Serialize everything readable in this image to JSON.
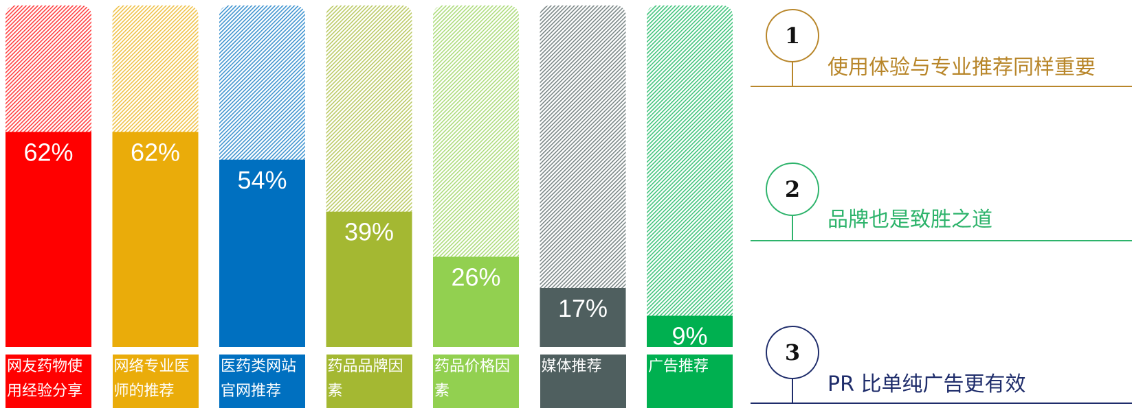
{
  "chart_data": {
    "type": "bar",
    "categories": [
      "网友药物使用经验分享",
      "网络专业医师的推荐",
      "医药类网站官网推荐",
      "药品品牌因素",
      "药品价格因素",
      "媒体推荐",
      "广告推荐"
    ],
    "values": [
      62,
      62,
      54,
      39,
      26,
      17,
      9
    ],
    "value_labels": [
      "62%",
      "62%",
      "54%",
      "39%",
      "26%",
      "17%",
      "9%"
    ],
    "colors": [
      "#ff0000",
      "#eaac0a",
      "#0070c0",
      "#a4b832",
      "#92d050",
      "#4f5f5f",
      "#00b050"
    ],
    "ylim": [
      0,
      100
    ]
  },
  "notes": [
    {
      "number": "1",
      "text": "使用体验与专业推荐同样重要",
      "color": "#b8862a"
    },
    {
      "number": "2",
      "text": "品牌也是致胜之道",
      "color": "#2db36b"
    },
    {
      "number": "3",
      "text": "PR 比单纯广告更有效",
      "color": "#1f2d6b"
    }
  ]
}
